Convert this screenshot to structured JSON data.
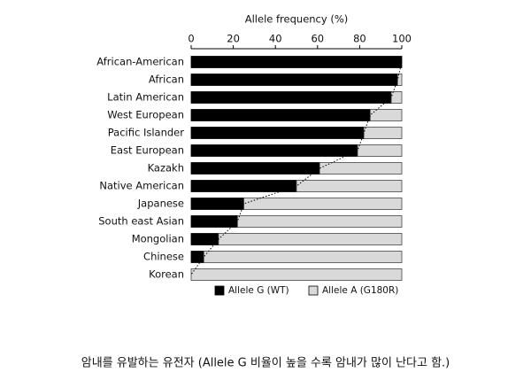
{
  "chart_data": {
    "type": "stacked-barh",
    "title": "Allele frequency (%)",
    "categories": [
      "African-American",
      "African",
      "Latin American",
      "West European",
      "Pacific Islander",
      "East European",
      "Kazakh",
      "Native American",
      "Japanese",
      "South east Asian",
      "Mongolian",
      "Chinese",
      "Korean"
    ],
    "series": [
      {
        "name": "Allele G (WT)",
        "color": "#000000",
        "values": [
          100,
          98,
          95,
          85,
          82,
          79,
          61,
          50,
          25,
          22,
          13,
          6,
          0
        ]
      },
      {
        "name": "Allele A (G180R)",
        "color": "#d9d9d9",
        "values": [
          0,
          2,
          5,
          15,
          18,
          21,
          39,
          50,
          75,
          78,
          87,
          94,
          100
        ]
      }
    ],
    "xlim": [
      0,
      100
    ],
    "xticks": [
      0,
      20,
      40,
      60,
      80,
      100
    ],
    "legend": "bottom"
  },
  "caption": "암내를 유발하는 유전자 (Allele G 비율이 높을 수록 암내가 많이 난다고 함.)"
}
